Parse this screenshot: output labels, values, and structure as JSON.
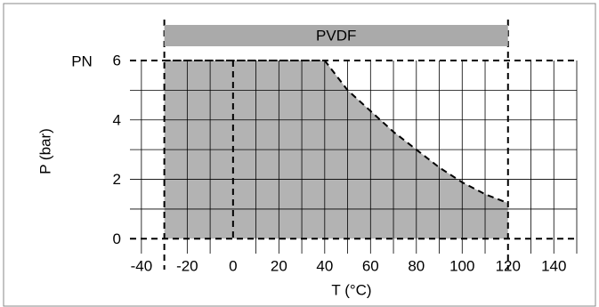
{
  "chart_data": {
    "type": "area",
    "band_label": "PVDF",
    "y_prefix": "PN",
    "xlabel": "T (°C)",
    "ylabel": "P (bar)",
    "x": [
      -30,
      40,
      50,
      60,
      70,
      80,
      90,
      100,
      110,
      120
    ],
    "values": [
      6,
      6,
      5.0,
      4.3,
      3.6,
      3.0,
      2.4,
      1.9,
      1.5,
      1.2
    ],
    "color": "#b3b3b3",
    "band_color": "#aaaaaa",
    "xlim": [
      -45,
      150
    ],
    "ylim": [
      -0.5,
      6
    ],
    "xticks": [
      -40,
      -20,
      0,
      20,
      40,
      60,
      80,
      100,
      120,
      140
    ],
    "yticks": [
      0,
      2,
      4,
      6
    ],
    "xgrid": [
      -40,
      -20,
      -10,
      10,
      20,
      30,
      40,
      50,
      60,
      70,
      80,
      90,
      100,
      110,
      130,
      140,
      150
    ],
    "ygrid": [
      1,
      2,
      3,
      4,
      5
    ],
    "reference_x": [
      -30,
      0,
      120
    ],
    "reference_y": [
      0,
      6
    ],
    "grid": true
  }
}
